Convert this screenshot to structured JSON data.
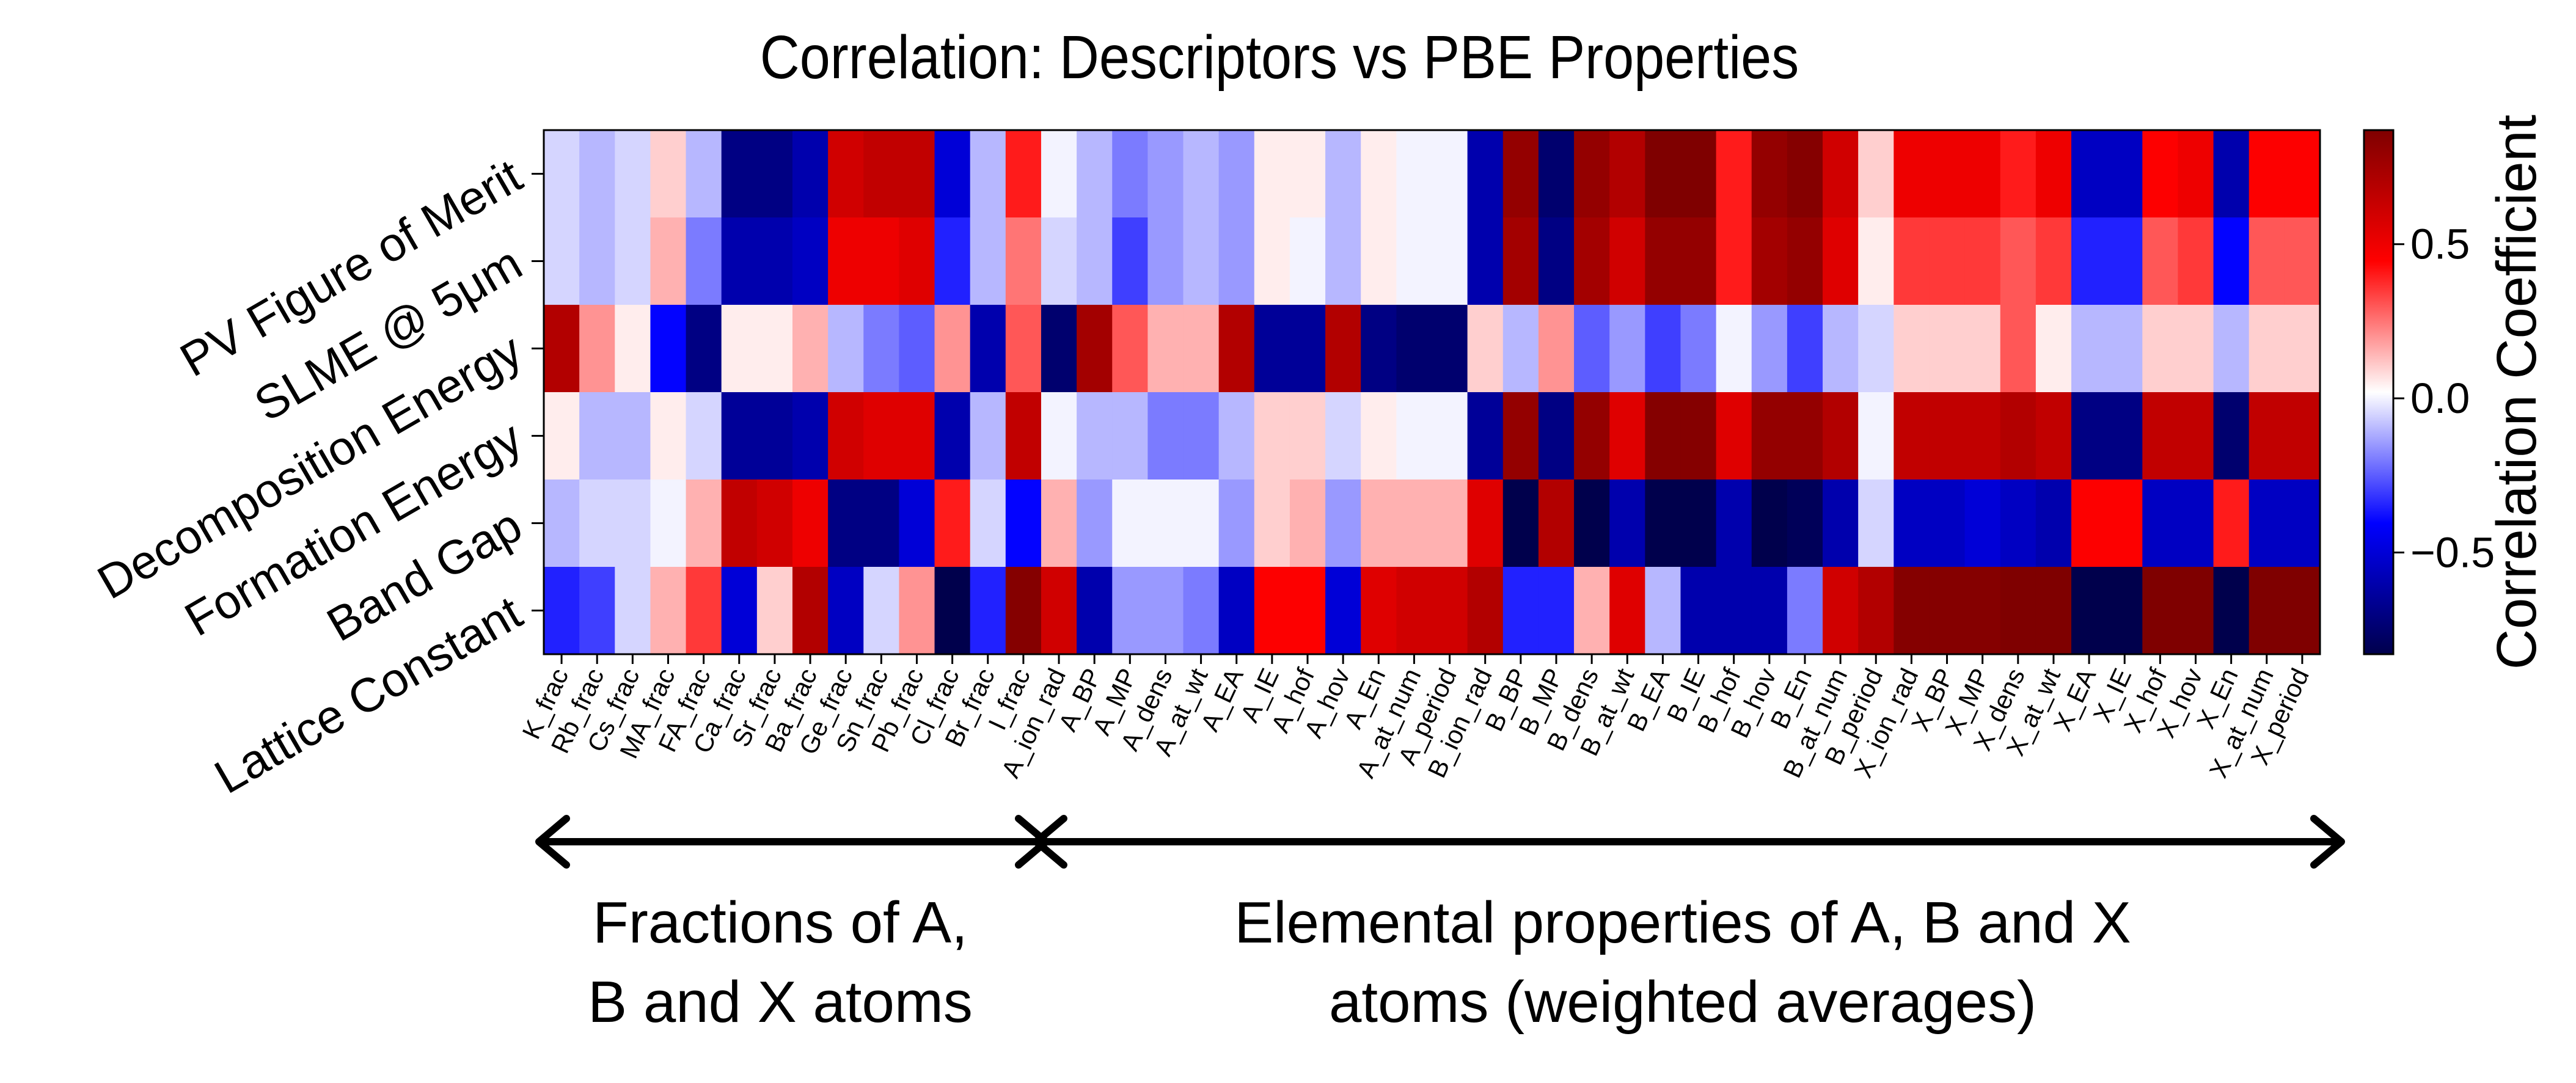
{
  "chart_data": {
    "type": "heatmap",
    "title": "Correlation: Descriptors vs PBE Properties",
    "colorbar_label": "Correlation Coefficient",
    "colorbar_ticks": [
      {
        "value": 0.5,
        "label": "0.5"
      },
      {
        "value": 0.0,
        "label": "0.0"
      },
      {
        "value": -0.5,
        "label": "−0.5"
      }
    ],
    "vmin": -0.83,
    "vmax": 0.87,
    "colormap": "seismic",
    "rows": [
      "PV Figure of Merit",
      "SLME @ 5μm",
      "Decomposition Energy",
      "Formation Energy",
      "Band Gap",
      "Lattice Constant"
    ],
    "columns": [
      "K_frac",
      "Rb_frac",
      "Cs_frac",
      "MA_frac",
      "FA_frac",
      "Ca_frac",
      "Sr_frac",
      "Ba_frac",
      "Ge_frac",
      "Sn_frac",
      "Pb_frac",
      "Cl_frac",
      "Br_frac",
      "I_frac",
      "A_ion_rad",
      "A_BP",
      "A_MP",
      "A_dens",
      "A_at_wt",
      "A_EA",
      "A_IE",
      "A_hof",
      "A_hov",
      "A_En",
      "A_at_num",
      "A_period",
      "B_ion_rad",
      "B_BP",
      "B_MP",
      "B_dens",
      "B_at_wt",
      "B_EA",
      "B_IE",
      "B_hof",
      "B_hov",
      "B_En",
      "B_at_num",
      "B_period",
      "X_ion_rad",
      "X_BP",
      "X_MP",
      "X_dens",
      "X_at_wt",
      "X_EA",
      "X_IE",
      "X_hof",
      "X_hov",
      "X_En",
      "X_at_num",
      "X_period"
    ],
    "values": [
      [
        -0.05,
        -0.1,
        -0.05,
        0.1,
        -0.1,
        -0.7,
        -0.7,
        -0.6,
        0.6,
        0.65,
        0.65,
        -0.5,
        -0.1,
        0.4,
        0.0,
        -0.1,
        -0.2,
        -0.15,
        -0.1,
        -0.15,
        0.05,
        0.05,
        -0.1,
        0.05,
        0.0,
        0.0,
        -0.6,
        0.8,
        -0.75,
        0.8,
        0.7,
        0.87,
        0.87,
        0.4,
        0.8,
        0.85,
        0.6,
        0.1,
        0.5,
        0.5,
        0.5,
        0.4,
        0.5,
        -0.55,
        -0.55,
        0.45,
        0.5,
        -0.6,
        0.45,
        0.45
      ],
      [
        -0.05,
        -0.1,
        -0.05,
        0.15,
        -0.2,
        -0.6,
        -0.6,
        -0.55,
        0.5,
        0.5,
        0.55,
        -0.35,
        -0.1,
        0.25,
        -0.05,
        -0.1,
        -0.3,
        -0.15,
        -0.1,
        -0.15,
        0.05,
        0.0,
        -0.1,
        0.05,
        0.0,
        0.0,
        -0.6,
        0.75,
        -0.7,
        0.75,
        0.6,
        0.8,
        0.8,
        0.4,
        0.75,
        0.8,
        0.55,
        0.05,
        0.35,
        0.35,
        0.35,
        0.3,
        0.35,
        -0.35,
        -0.35,
        0.3,
        0.35,
        -0.4,
        0.3,
        0.3
      ],
      [
        0.7,
        0.2,
        0.05,
        -0.4,
        -0.7,
        0.05,
        0.05,
        0.15,
        -0.1,
        -0.2,
        -0.25,
        0.2,
        -0.6,
        0.3,
        -0.75,
        0.75,
        0.3,
        0.15,
        0.15,
        0.7,
        -0.65,
        -0.65,
        0.7,
        -0.7,
        -0.75,
        -0.75,
        0.1,
        -0.1,
        0.2,
        -0.25,
        -0.15,
        -0.3,
        -0.2,
        0.0,
        -0.15,
        -0.3,
        -0.1,
        -0.05,
        0.1,
        0.1,
        0.1,
        0.3,
        0.05,
        -0.1,
        -0.1,
        0.1,
        0.1,
        -0.1,
        0.1,
        0.1
      ],
      [
        0.05,
        -0.1,
        -0.1,
        0.05,
        -0.05,
        -0.65,
        -0.65,
        -0.6,
        0.6,
        0.55,
        0.55,
        -0.6,
        -0.1,
        0.65,
        0.0,
        -0.1,
        -0.1,
        -0.2,
        -0.2,
        -0.1,
        0.1,
        0.1,
        -0.05,
        0.05,
        0.0,
        0.0,
        -0.65,
        0.8,
        -0.7,
        0.8,
        0.55,
        0.85,
        0.85,
        0.55,
        0.8,
        0.8,
        0.7,
        0.0,
        0.65,
        0.65,
        0.65,
        0.7,
        0.65,
        -0.7,
        -0.7,
        0.65,
        0.65,
        -0.75,
        0.65,
        0.65
      ],
      [
        -0.1,
        -0.05,
        -0.05,
        0.0,
        0.15,
        0.65,
        0.6,
        0.5,
        -0.7,
        -0.7,
        -0.5,
        0.4,
        -0.05,
        -0.4,
        0.15,
        -0.15,
        0.0,
        0.0,
        0.0,
        -0.15,
        0.1,
        0.15,
        -0.15,
        0.15,
        0.15,
        0.15,
        0.55,
        -0.83,
        0.7,
        -0.83,
        -0.6,
        -0.83,
        -0.83,
        -0.6,
        -0.83,
        -0.8,
        -0.6,
        -0.05,
        -0.55,
        -0.55,
        -0.5,
        -0.55,
        -0.6,
        0.45,
        0.45,
        -0.55,
        -0.55,
        0.4,
        -0.55,
        -0.55
      ],
      [
        -0.35,
        -0.3,
        -0.05,
        0.15,
        0.35,
        -0.5,
        0.1,
        0.7,
        -0.55,
        -0.05,
        0.2,
        -0.83,
        -0.35,
        0.85,
        0.6,
        -0.6,
        -0.15,
        -0.15,
        -0.2,
        -0.55,
        0.45,
        0.45,
        -0.5,
        0.55,
        0.6,
        0.6,
        0.7,
        -0.35,
        -0.35,
        0.15,
        0.55,
        -0.1,
        -0.6,
        -0.6,
        -0.6,
        -0.2,
        0.6,
        0.7,
        0.85,
        0.85,
        0.85,
        0.87,
        0.87,
        -0.83,
        -0.83,
        0.87,
        0.87,
        -0.83,
        0.87,
        0.87
      ]
    ],
    "annotations": [
      {
        "text": [
          "Fractions of A,",
          "B and X atoms"
        ],
        "spans_columns": [
          0,
          13
        ]
      },
      {
        "text": [
          "Elemental properties of A, B and X",
          "atoms (weighted averages)"
        ],
        "spans_columns": [
          14,
          49
        ]
      }
    ]
  }
}
